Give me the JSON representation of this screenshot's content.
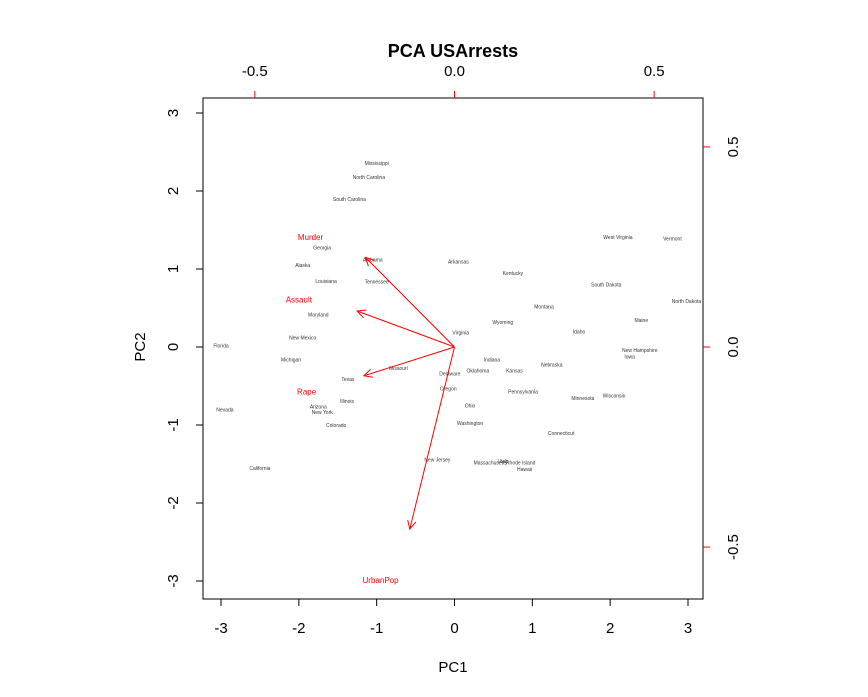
{
  "chart_data": {
    "type": "scatter",
    "title": "PCA USArrests",
    "xlabel": "PC1",
    "ylabel": "PC2",
    "xlim": [
      -3.3,
      3.2
    ],
    "ylim": [
      -3.25,
      3.2
    ],
    "ticks": {
      "bottom": [
        "-3",
        "-2",
        "-1",
        "0",
        "1",
        "2",
        "3"
      ],
      "left": [
        "-3",
        "-2",
        "-1",
        "0",
        "1",
        "2",
        "3"
      ],
      "top": [
        "-0.5",
        "0.0",
        "0.5"
      ],
      "right": [
        "-0.5",
        "0.0",
        "0.5"
      ]
    },
    "tick_values": {
      "bottom": [
        -3,
        -2,
        -1,
        0,
        1,
        2,
        3
      ],
      "left": [
        -3,
        -2,
        -1,
        0,
        1,
        2,
        3
      ],
      "top": [
        -0.5,
        0.0,
        0.5
      ],
      "right": [
        -0.5,
        0.0,
        0.5
      ]
    },
    "loading_scale": 5.13,
    "points": [
      {
        "label": "Mississippi",
        "x": -1.0,
        "y": 2.35
      },
      {
        "label": "North Carolina",
        "x": -1.1,
        "y": 2.17
      },
      {
        "label": "South Carolina",
        "x": -1.35,
        "y": 1.89
      },
      {
        "label": "Georgia",
        "x": -1.7,
        "y": 1.27
      },
      {
        "label": "Alaska",
        "x": -1.95,
        "y": 1.04
      },
      {
        "label": "Alabama",
        "x": -1.05,
        "y": 1.11
      },
      {
        "label": "Louisiana",
        "x": -1.65,
        "y": 0.84
      },
      {
        "label": "Tennessee",
        "x": -1.0,
        "y": 0.83
      },
      {
        "label": "Arkansas",
        "x": 0.05,
        "y": 1.09
      },
      {
        "label": "Kentucky",
        "x": 0.75,
        "y": 0.94
      },
      {
        "label": "West Virginia",
        "x": 2.1,
        "y": 1.4
      },
      {
        "label": "Vermont",
        "x": 2.8,
        "y": 1.38
      },
      {
        "label": "South Dakota",
        "x": 1.95,
        "y": 0.79
      },
      {
        "label": "North Dakota",
        "x": 2.98,
        "y": 0.58
      },
      {
        "label": "Montana",
        "x": 1.15,
        "y": 0.51
      },
      {
        "label": "Maine",
        "x": 2.4,
        "y": 0.34
      },
      {
        "label": "Maryland",
        "x": -1.75,
        "y": 0.41
      },
      {
        "label": "Wyoming",
        "x": 0.62,
        "y": 0.31
      },
      {
        "label": "Idaho",
        "x": 1.6,
        "y": 0.19
      },
      {
        "label": "Virginia",
        "x": 0.08,
        "y": 0.18
      },
      {
        "label": "New Mexico",
        "x": -1.95,
        "y": 0.11
      },
      {
        "label": "Florida",
        "x": -3.0,
        "y": 0.01
      },
      {
        "label": "New Hampshire",
        "x": 2.38,
        "y": -0.05
      },
      {
        "label": "Iowa",
        "x": 2.25,
        "y": -0.13
      },
      {
        "label": "Michigan",
        "x": -2.1,
        "y": -0.17
      },
      {
        "label": "Indiana",
        "x": 0.48,
        "y": -0.17
      },
      {
        "label": "Nebraska",
        "x": 1.25,
        "y": -0.23
      },
      {
        "label": "Missouri",
        "x": -0.72,
        "y": -0.28
      },
      {
        "label": "Oklahoma",
        "x": 0.3,
        "y": -0.31
      },
      {
        "label": "Kansas",
        "x": 0.77,
        "y": -0.31
      },
      {
        "label": "Delaware",
        "x": -0.06,
        "y": -0.35
      },
      {
        "label": "Texas",
        "x": -1.37,
        "y": -0.42
      },
      {
        "label": "Oregon",
        "x": -0.08,
        "y": -0.54
      },
      {
        "label": "Pennsylvania",
        "x": 0.88,
        "y": -0.58
      },
      {
        "label": "Minnesota",
        "x": 1.65,
        "y": -0.66
      },
      {
        "label": "Wisconsin",
        "x": 2.05,
        "y": -0.63
      },
      {
        "label": "Nevada",
        "x": -2.95,
        "y": -0.81
      },
      {
        "label": "Illinois",
        "x": -1.38,
        "y": -0.7
      },
      {
        "label": "Ohio",
        "x": 0.2,
        "y": -0.76
      },
      {
        "label": "Arizona",
        "x": -1.75,
        "y": -0.77
      },
      {
        "label": "New York",
        "x": -1.7,
        "y": -0.84
      },
      {
        "label": "Washington",
        "x": 0.2,
        "y": -0.98
      },
      {
        "label": "Colorado",
        "x": -1.52,
        "y": -1.01
      },
      {
        "label": "Connecticut",
        "x": 1.37,
        "y": -1.11
      },
      {
        "label": "New Jersey",
        "x": -0.22,
        "y": -1.45
      },
      {
        "label": "Massachusetts",
        "x": 0.46,
        "y": -1.49
      },
      {
        "label": "Utah",
        "x": 0.62,
        "y": -1.47
      },
      {
        "label": "Rhode Island",
        "x": 0.85,
        "y": -1.49
      },
      {
        "label": "Hawaii",
        "x": 0.9,
        "y": -1.57
      },
      {
        "label": "California",
        "x": -2.5,
        "y": -1.56
      }
    ],
    "loadings": [
      {
        "label": "Murder",
        "x": -0.223,
        "y": 0.224
      },
      {
        "label": "Assault",
        "x": -0.244,
        "y": 0.09
      },
      {
        "label": "UrbanPop",
        "x": -0.112,
        "y": -0.455
      },
      {
        "label": "Rape",
        "x": -0.227,
        "y": -0.072
      }
    ],
    "loading_labels": [
      {
        "label": "Murder",
        "x": -1.85,
        "y": 1.4
      },
      {
        "label": "Assault",
        "x": -2.0,
        "y": 0.6
      },
      {
        "label": "Rape",
        "x": -1.9,
        "y": -0.58
      },
      {
        "label": "UrbanPop",
        "x": -0.95,
        "y": -3.0
      }
    ],
    "point_color": "#444444",
    "loading_color": "#ff0000",
    "grid": false
  }
}
